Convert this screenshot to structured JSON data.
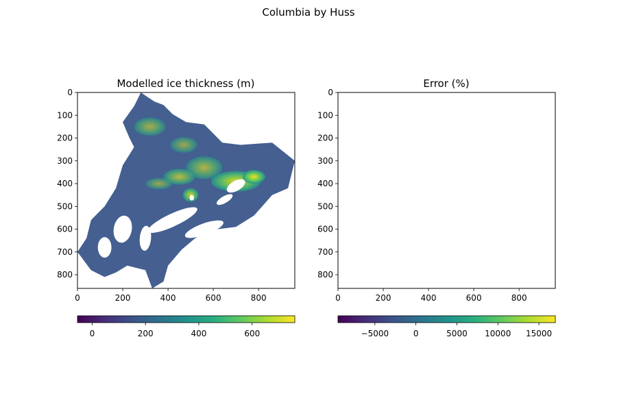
{
  "figure": {
    "suptitle": "Columbia by Huss"
  },
  "chart_data": [
    {
      "type": "heatmap",
      "title": "Modelled ice thickness (m)",
      "xlim": [
        0,
        960
      ],
      "ylim": [
        860,
        0
      ],
      "x_ticks": [
        0,
        200,
        400,
        600,
        800
      ],
      "y_ticks": [
        0,
        100,
        200,
        300,
        400,
        500,
        600,
        700,
        800
      ],
      "colormap": "viridis",
      "colorbar": {
        "orientation": "horizontal",
        "range": [
          -55,
          760
        ],
        "ticks": [
          0,
          200,
          400,
          600
        ],
        "tick_labels": [
          "0",
          "200",
          "400",
          "600"
        ]
      },
      "value_range": [
        -50,
        760
      ],
      "glacier_mask_outline_approx": [
        [
          280,
          0
        ],
        [
          310,
          20
        ],
        [
          340,
          40
        ],
        [
          380,
          55
        ],
        [
          420,
          95
        ],
        [
          480,
          130
        ],
        [
          560,
          140
        ],
        [
          640,
          220
        ],
        [
          720,
          230
        ],
        [
          860,
          220
        ],
        [
          960,
          300
        ],
        [
          930,
          420
        ],
        [
          860,
          450
        ],
        [
          780,
          540
        ],
        [
          700,
          590
        ],
        [
          620,
          600
        ],
        [
          560,
          620
        ],
        [
          520,
          640
        ],
        [
          460,
          690
        ],
        [
          400,
          760
        ],
        [
          380,
          830
        ],
        [
          330,
          860
        ],
        [
          300,
          780
        ],
        [
          220,
          760
        ],
        [
          170,
          790
        ],
        [
          120,
          810
        ],
        [
          60,
          780
        ],
        [
          0,
          700
        ],
        [
          40,
          640
        ],
        [
          60,
          560
        ],
        [
          120,
          500
        ],
        [
          170,
          420
        ],
        [
          200,
          320
        ],
        [
          250,
          240
        ],
        [
          230,
          200
        ],
        [
          200,
          130
        ],
        [
          250,
          60
        ]
      ]
    },
    {
      "type": "heatmap",
      "title": "Error (%)",
      "xlim": [
        0,
        960
      ],
      "ylim": [
        860,
        0
      ],
      "x_ticks": [
        0,
        200,
        400,
        600,
        800
      ],
      "y_ticks": [
        0,
        100,
        200,
        300,
        400,
        500,
        600,
        700,
        800
      ],
      "colormap": "viridis",
      "colorbar": {
        "orientation": "horizontal",
        "range": [
          -9500,
          17000
        ],
        "ticks": [
          -5000,
          0,
          5000,
          10000,
          15000
        ],
        "tick_labels": [
          "−5000",
          "0",
          "5000",
          "10000",
          "15000"
        ]
      }
    }
  ]
}
